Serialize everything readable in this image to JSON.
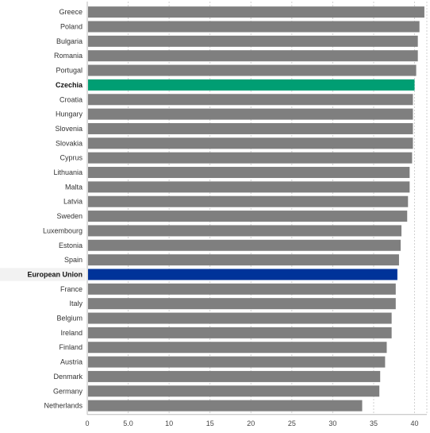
{
  "chart_data": {
    "type": "bar",
    "orientation": "horizontal",
    "categories": [
      "Greece",
      "Poland",
      "Bulgaria",
      "Romania",
      "Portugal",
      "Czechia",
      "Croatia",
      "Hungary",
      "Slovenia",
      "Slovakia",
      "Cyprus",
      "Lithuania",
      "Malta",
      "Latvia",
      "Sweden",
      "Luxembourg",
      "Estonia",
      "Spain",
      "European Union",
      "France",
      "Italy",
      "Belgium",
      "Ireland",
      "Finland",
      "Austria",
      "Denmark",
      "Germany",
      "Netherlands"
    ],
    "values": [
      41.2,
      40.6,
      40.4,
      40.4,
      40.2,
      40.0,
      39.8,
      39.8,
      39.8,
      39.8,
      39.7,
      39.4,
      39.4,
      39.2,
      39.1,
      38.4,
      38.3,
      38.1,
      37.9,
      37.7,
      37.7,
      37.2,
      37.2,
      36.6,
      36.4,
      35.8,
      35.7,
      33.6
    ],
    "highlights": {
      "Czechia": "#009e73",
      "European Union": "#003399"
    },
    "bold_categories": [
      "Czechia",
      "European Union"
    ],
    "default_color": "#7f7f7f",
    "xlim": [
      0,
      41.5
    ],
    "x_ticks": [
      {
        "value": 0,
        "label": "0"
      },
      {
        "value": 5,
        "label": "5.0"
      },
      {
        "value": 10,
        "label": "10"
      },
      {
        "value": 15,
        "label": "15"
      },
      {
        "value": 20,
        "label": "20"
      },
      {
        "value": 25,
        "label": "25"
      },
      {
        "value": 30,
        "label": "30"
      },
      {
        "value": 35,
        "label": "35"
      },
      {
        "value": 40,
        "label": "40"
      }
    ],
    "grid": "vertical-dashed",
    "title": "",
    "xlabel": "",
    "ylabel": ""
  }
}
